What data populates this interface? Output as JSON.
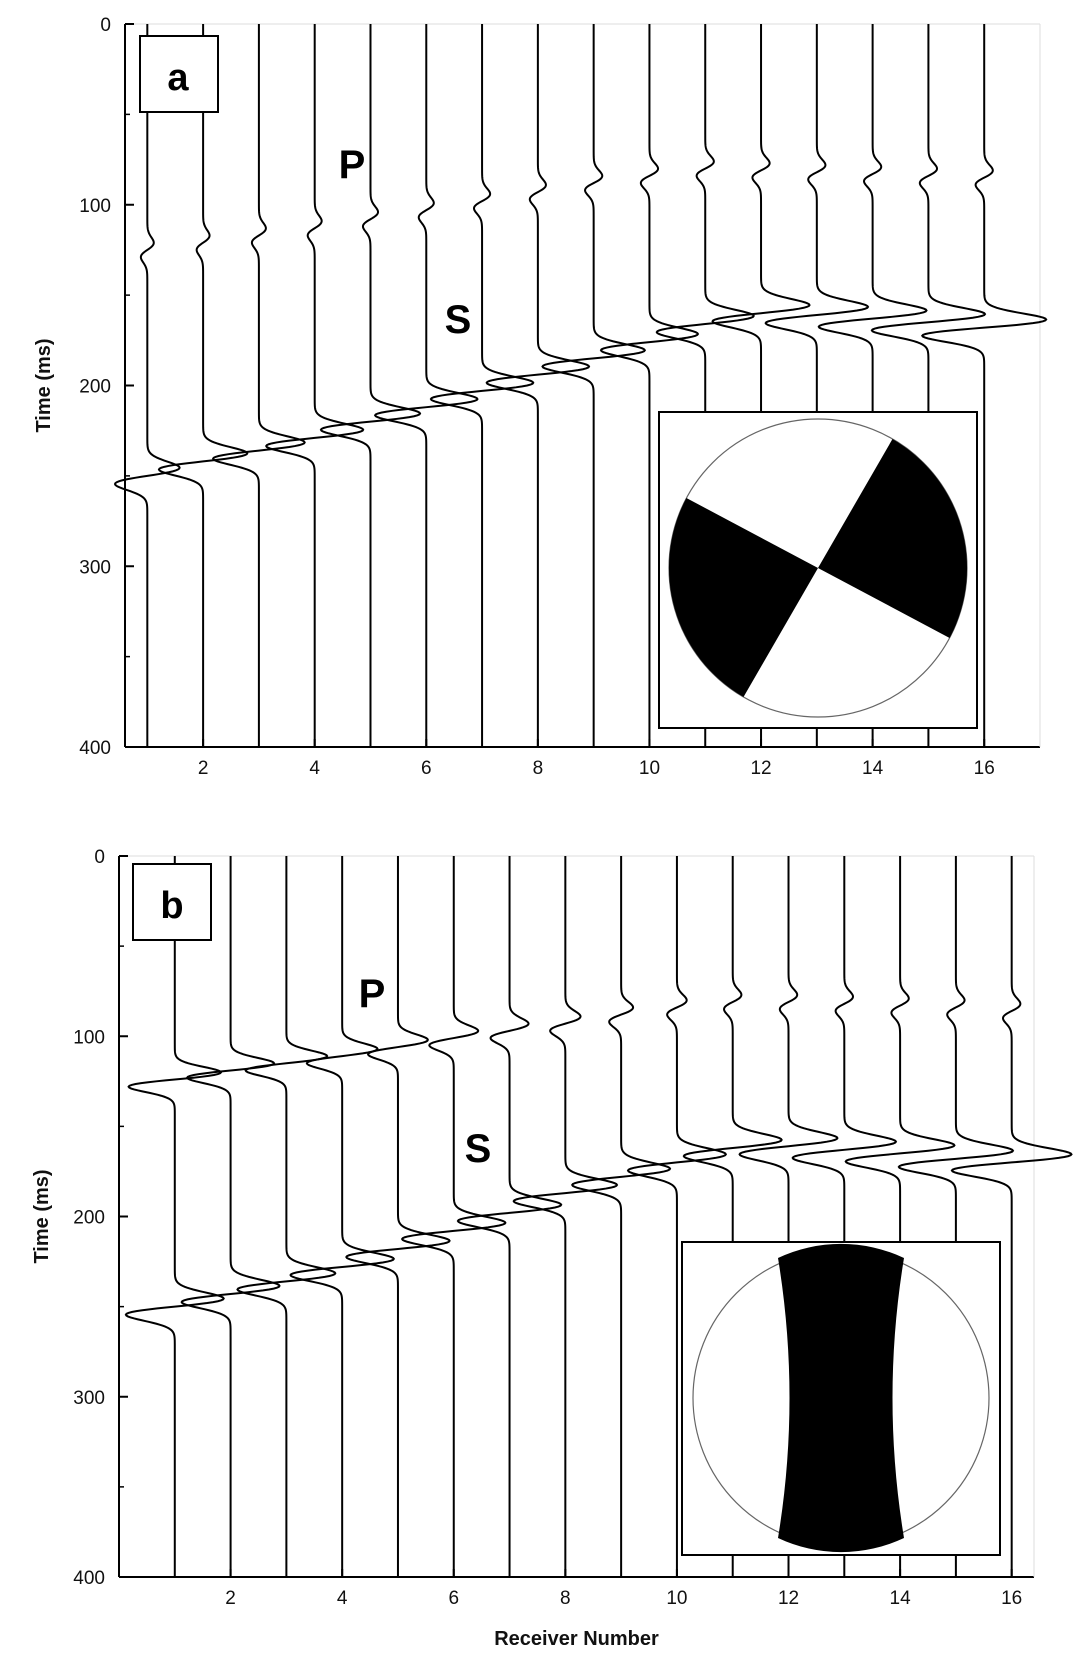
{
  "chart_data": [
    {
      "type": "line",
      "panel_label": "a",
      "ylabel": "Time (ms)",
      "xlabel": "",
      "ylim": [
        400,
        0
      ],
      "xlim": [
        0.6,
        17
      ],
      "yticks": [
        "0",
        "100",
        "200",
        "300",
        "400"
      ],
      "xticks": [
        "2",
        "4",
        "6",
        "8",
        "10",
        "12",
        "14",
        "16"
      ],
      "receivers": [
        1,
        2,
        3,
        4,
        5,
        6,
        7,
        8,
        9,
        10,
        11,
        12,
        13,
        14,
        15,
        16
      ],
      "p_arrival_ms": [
        125,
        121,
        117,
        113,
        108,
        103,
        98,
        93,
        88,
        84,
        80,
        81,
        82,
        83,
        84,
        85
      ],
      "p_amplitude": [
        0.12,
        0.12,
        0.13,
        0.13,
        0.14,
        0.14,
        0.15,
        0.15,
        0.16,
        0.16,
        0.16,
        0.16,
        0.16,
        0.16,
        0.16,
        0.16
      ],
      "s_arrival_ms": [
        250,
        242,
        236,
        229,
        220,
        212,
        203,
        194,
        185,
        176,
        166,
        160,
        161,
        163,
        165,
        168
      ],
      "s_amplitude": [
        0.6,
        0.82,
        0.85,
        0.9,
        0.92,
        0.95,
        0.95,
        0.95,
        0.95,
        0.9,
        0.9,
        0.9,
        0.95,
        1.0,
        1.05,
        1.15
      ],
      "phase_labels": [
        "P",
        "S"
      ],
      "beachball": "strike-slip"
    },
    {
      "type": "line",
      "panel_label": "b",
      "ylabel": "Time (ms)",
      "xlabel": "Receiver Number",
      "ylim": [
        400,
        0
      ],
      "xlim": [
        0,
        16.4
      ],
      "yticks": [
        "0",
        "100",
        "200",
        "300",
        "400"
      ],
      "xticks": [
        "2",
        "4",
        "6",
        "8",
        "10",
        "12",
        "14",
        "16"
      ],
      "receivers": [
        1,
        2,
        3,
        4,
        5,
        6,
        7,
        8,
        9,
        10,
        11,
        12,
        13,
        14,
        15,
        16
      ],
      "p_arrival_ms": [
        124,
        119,
        115,
        111,
        106,
        101,
        97,
        93,
        88,
        84,
        81,
        81,
        82,
        83,
        84,
        86
      ],
      "p_amplitude": [
        0.85,
        0.8,
        0.75,
        0.65,
        0.55,
        0.45,
        0.35,
        0.28,
        0.22,
        0.18,
        0.16,
        0.16,
        0.16,
        0.16,
        0.16,
        0.16
      ],
      "s_arrival_ms": [
        250,
        243,
        236,
        228,
        218,
        208,
        198,
        187,
        178,
        170,
        162,
        161,
        163,
        165,
        168,
        170
      ],
      "s_amplitude": [
        0.9,
        0.9,
        0.9,
        0.95,
        0.95,
        0.95,
        0.95,
        0.95,
        0.9,
        0.9,
        0.9,
        0.9,
        0.95,
        1.0,
        1.05,
        1.1
      ],
      "phase_labels": [
        "P",
        "S"
      ],
      "beachball": "dip-slip"
    }
  ]
}
